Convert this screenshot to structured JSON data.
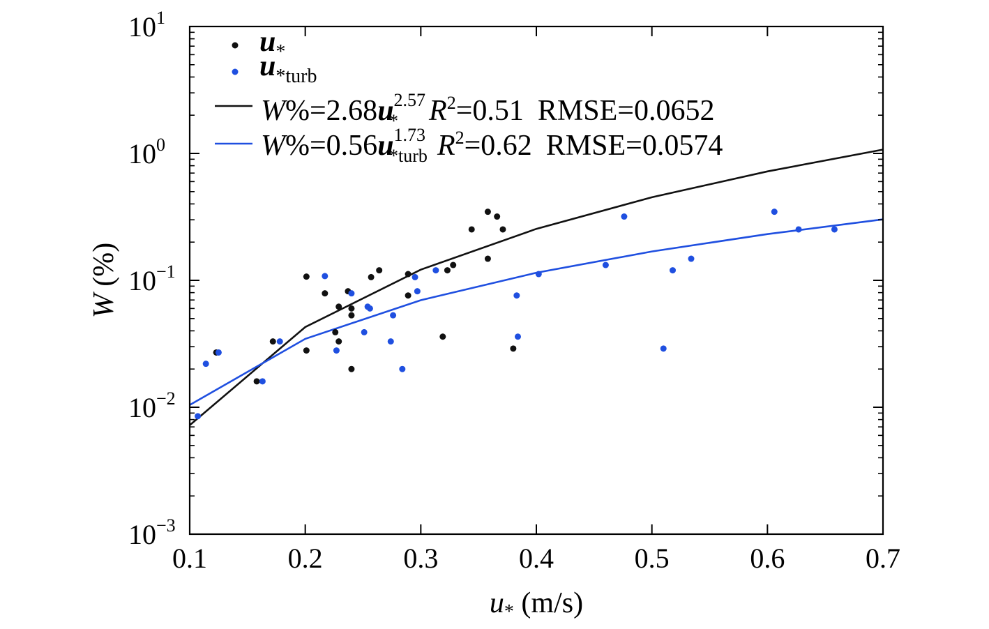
{
  "chart_data": {
    "type": "scatter",
    "x_axis": {
      "label_symbol": "u",
      "label_subscript": "*",
      "label_unit": " (m/s)",
      "range": [
        0.1,
        0.7
      ],
      "scale": "linear",
      "ticks": [
        0.1,
        0.2,
        0.3,
        0.4,
        0.5,
        0.6,
        0.7
      ],
      "tick_labels": [
        "0.1",
        "0.2",
        "0.3",
        "0.4",
        "0.5",
        "0.6",
        "0.7"
      ]
    },
    "y_axis": {
      "label_symbol": "W",
      "label_unit": " (%)",
      "range": [
        0.001,
        10
      ],
      "scale": "log",
      "tick_exponents": [
        -3,
        -2,
        -1,
        0,
        1
      ],
      "tick_exponent_labels": [
        "−3",
        "−2",
        "−1",
        "0",
        "1"
      ],
      "tick_base": "10"
    },
    "series": [
      {
        "name": "u*",
        "legend_symbol": "u",
        "legend_subscript": "*",
        "color": "#111111",
        "points": [
          [
            0.123,
            0.027
          ],
          [
            0.158,
            0.016
          ],
          [
            0.172,
            0.033
          ],
          [
            0.201,
            0.107
          ],
          [
            0.201,
            0.028
          ],
          [
            0.217,
            0.079
          ],
          [
            0.226,
            0.039
          ],
          [
            0.229,
            0.033
          ],
          [
            0.229,
            0.062
          ],
          [
            0.237,
            0.082
          ],
          [
            0.24,
            0.06
          ],
          [
            0.24,
            0.053
          ],
          [
            0.24,
            0.02
          ],
          [
            0.257,
            0.106
          ],
          [
            0.264,
            0.12
          ],
          [
            0.289,
            0.112
          ],
          [
            0.289,
            0.076
          ],
          [
            0.319,
            0.036
          ],
          [
            0.323,
            0.12
          ],
          [
            0.328,
            0.132
          ],
          [
            0.344,
            0.252
          ],
          [
            0.358,
            0.347
          ],
          [
            0.358,
            0.148
          ],
          [
            0.366,
            0.318
          ],
          [
            0.371,
            0.252
          ],
          [
            0.38,
            0.029
          ]
        ]
      },
      {
        "name": "u*turb",
        "legend_symbol": "u",
        "legend_subscript": "*turb",
        "color": "#1f4fe0",
        "points": [
          [
            0.107,
            0.0085
          ],
          [
            0.114,
            0.022
          ],
          [
            0.125,
            0.027
          ],
          [
            0.163,
            0.016
          ],
          [
            0.178,
            0.033
          ],
          [
            0.217,
            0.108
          ],
          [
            0.227,
            0.028
          ],
          [
            0.24,
            0.079
          ],
          [
            0.251,
            0.039
          ],
          [
            0.254,
            0.062
          ],
          [
            0.256,
            0.06
          ],
          [
            0.274,
            0.033
          ],
          [
            0.276,
            0.053
          ],
          [
            0.284,
            0.02
          ],
          [
            0.295,
            0.106
          ],
          [
            0.297,
            0.082
          ],
          [
            0.313,
            0.12
          ],
          [
            0.383,
            0.076
          ],
          [
            0.384,
            0.036
          ],
          [
            0.402,
            0.112
          ],
          [
            0.46,
            0.132
          ],
          [
            0.476,
            0.318
          ],
          [
            0.51,
            0.029
          ],
          [
            0.518,
            0.12
          ],
          [
            0.534,
            0.148
          ],
          [
            0.606,
            0.347
          ],
          [
            0.627,
            0.252
          ],
          [
            0.658,
            0.252
          ]
        ]
      }
    ],
    "fits": [
      {
        "name": "fit u*",
        "color": "#111111",
        "coef": 2.68,
        "exponent": 2.57,
        "x_samples": [
          0.1,
          0.2,
          0.3,
          0.4,
          0.5,
          0.6,
          0.7
        ],
        "lhs": "W",
        "eq_body": "%=2.68",
        "eq_symbol": "u",
        "eq_exponent": "2.57",
        "eq_subscript": "*",
        "r2_symbol": "R",
        "r2_power": "2",
        "r2_value": "=0.51",
        "rmse": "RMSE=0.0652"
      },
      {
        "name": "fit u*turb",
        "color": "#1f4fe0",
        "coef": 0.56,
        "exponent": 1.73,
        "x_samples": [
          0.1,
          0.2,
          0.3,
          0.4,
          0.5,
          0.6,
          0.7
        ],
        "lhs": "W",
        "eq_body": "%=0.56",
        "eq_symbol": "u",
        "eq_exponent": "1.73",
        "eq_subscript": "*turb",
        "r2_symbol": "R",
        "r2_power": "2",
        "r2_value": "=0.62",
        "rmse": "RMSE=0.0574"
      }
    ],
    "legend_position": "top-left",
    "grid": false
  }
}
